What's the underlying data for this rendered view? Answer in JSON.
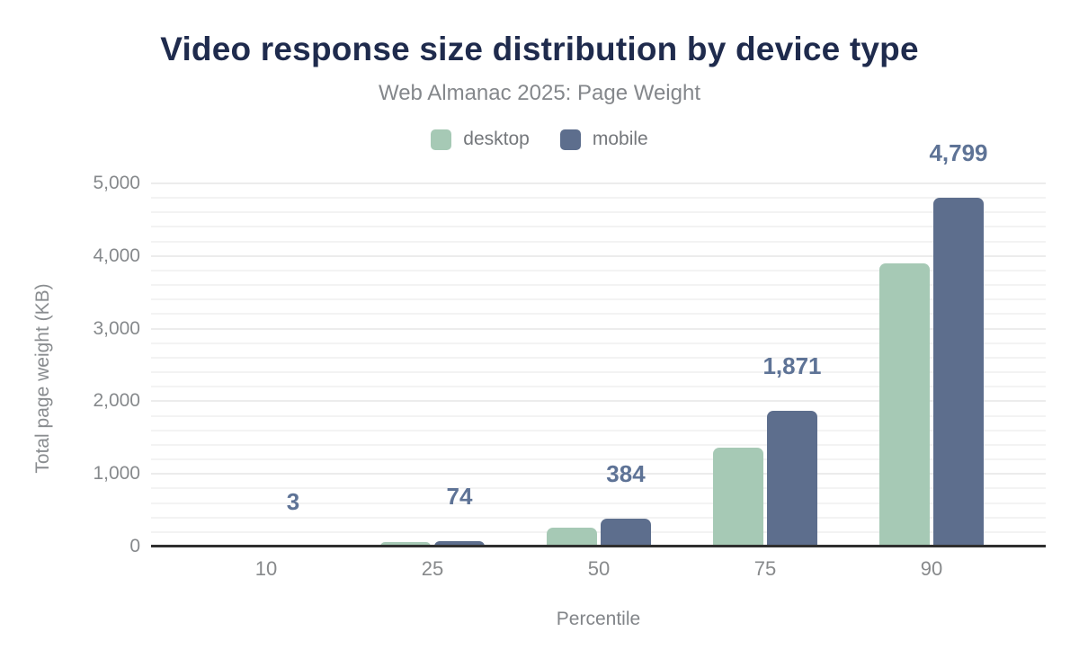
{
  "chart_data": {
    "type": "bar",
    "title": "Video response size distribution by device type",
    "subtitle": "Web Almanac 2025: Page Weight",
    "categories": [
      "10",
      "25",
      "50",
      "75",
      "90"
    ],
    "series": [
      {
        "name": "desktop",
        "color": "#a6c9b5",
        "values": [
          1,
          57,
          255,
          1360,
          3900
        ]
      },
      {
        "name": "mobile",
        "color": "#5d6e8d",
        "values": [
          3,
          74,
          384,
          1871,
          4799
        ],
        "data_labels": [
          "3",
          "74",
          "384",
          "1,871",
          "4,799"
        ]
      }
    ],
    "xlabel": "Percentile",
    "ylabel": "Total page weight (KB)",
    "ylim": [
      0,
      5000
    ],
    "yticks": [
      0,
      1000,
      2000,
      3000,
      4000,
      5000
    ],
    "ytick_labels": [
      "0",
      "1,000",
      "2,000",
      "3,000",
      "4,000",
      "5,000"
    ],
    "grid": {
      "on": true,
      "minor_step": 200,
      "major_step": 1000
    },
    "legend_position": "top",
    "annotation_color": "#5e7396",
    "annotated_series": "mobile"
  }
}
